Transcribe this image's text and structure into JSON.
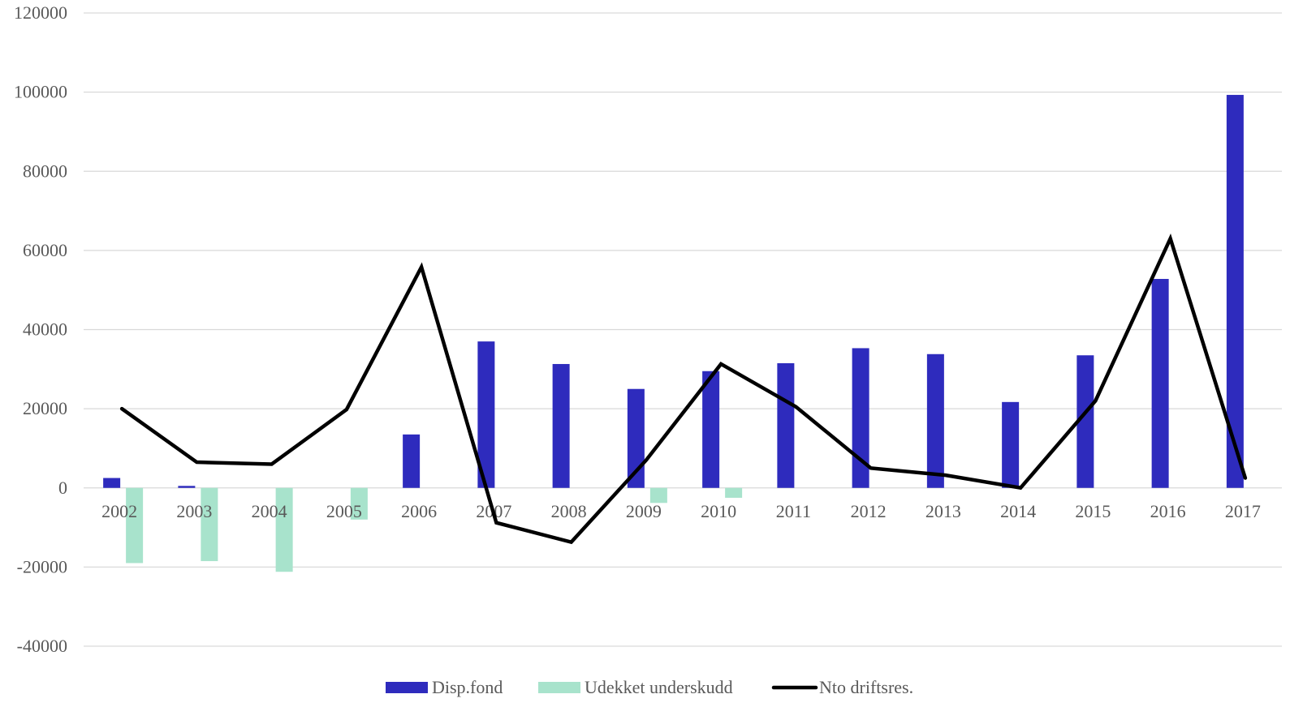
{
  "colors": {
    "disp_fond": "#2e2bbd",
    "udekket": "#a8e3cc",
    "nto": "#000000",
    "grid": "#d9d9d9",
    "text": "#595959"
  },
  "chart_data": {
    "type": "bar",
    "categories": [
      "2002",
      "2003",
      "2004",
      "2005",
      "2006",
      "2007",
      "2008",
      "2009",
      "2010",
      "2011",
      "2012",
      "2013",
      "2014",
      "2015",
      "2016",
      "2017"
    ],
    "ylim": [
      -40000,
      120000
    ],
    "yticks": [
      -40000,
      -20000,
      0,
      20000,
      40000,
      60000,
      80000,
      100000,
      120000
    ],
    "ytick_labels": [
      "-40000",
      "-20000",
      "0",
      "20000",
      "40000",
      "60000",
      "80000",
      "100000",
      "120000"
    ],
    "grid": true,
    "legend_position": "bottom",
    "series": [
      {
        "name": "Disp.fond",
        "type": "bar",
        "values": [
          2500,
          500,
          0,
          0,
          13500,
          37000,
          31300,
          25000,
          29500,
          31500,
          35300,
          33800,
          21700,
          33500,
          52800,
          99300
        ]
      },
      {
        "name": "Udekket underskudd",
        "type": "bar",
        "values": [
          -19000,
          -18500,
          -21200,
          -8000,
          0,
          0,
          0,
          -3800,
          -2500,
          0,
          0,
          0,
          0,
          0,
          0,
          0
        ]
      },
      {
        "name": "Nto driftsres.",
        "type": "line",
        "values": [
          20000,
          6500,
          6000,
          19800,
          55800,
          -8800,
          -13700,
          7000,
          31300,
          20500,
          5000,
          3200,
          0,
          22000,
          63000,
          2500
        ]
      }
    ]
  }
}
